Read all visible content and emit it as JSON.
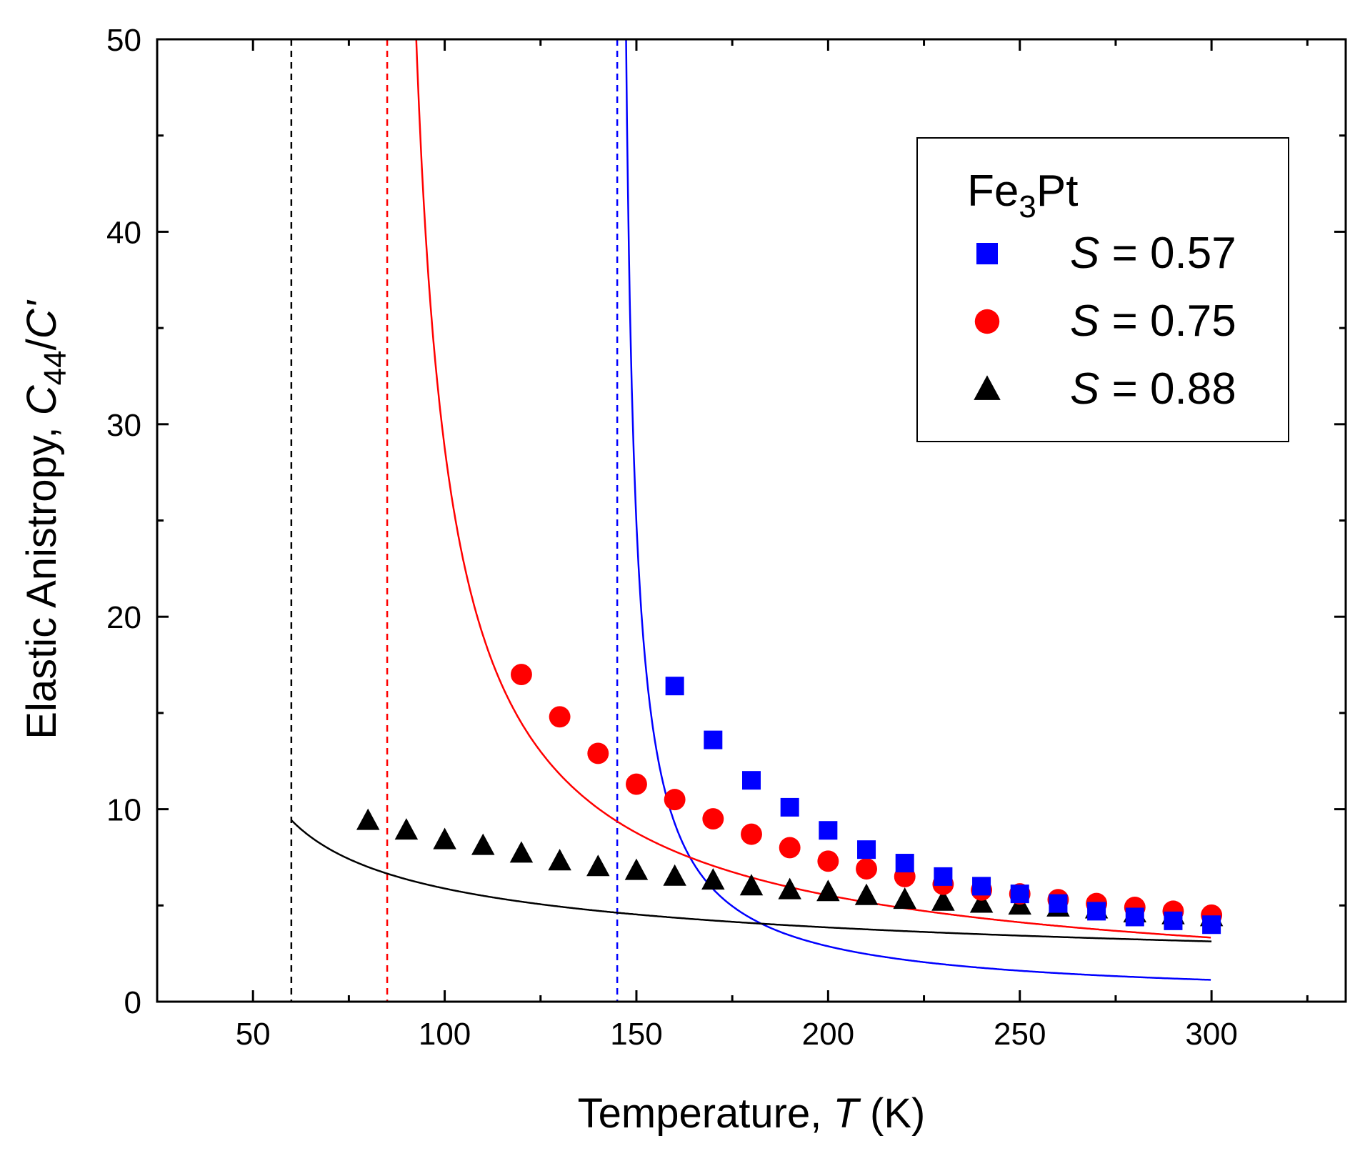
{
  "chart_data": {
    "type": "scatter",
    "title": "",
    "xlabel": {
      "prefix": "Temperature, ",
      "var": "T",
      "suffix": " (K)"
    },
    "ylabel": {
      "prefix": "Elastic Anistropy, ",
      "var": "C",
      "sub": "44",
      "slash": "/",
      "var2": "C'"
    },
    "xlim": [
      25,
      335
    ],
    "ylim": [
      0,
      50
    ],
    "xticks": [
      50,
      100,
      150,
      200,
      250,
      300
    ],
    "yticks": [
      0,
      10,
      20,
      30,
      40,
      50
    ],
    "legend": {
      "title_main": "Fe",
      "title_sub": "3",
      "title_rest": "Pt",
      "position": "top-right"
    },
    "series": [
      {
        "name": "S = 0.57",
        "label_var": "S",
        "label_rest": " = 0.57",
        "marker": "square",
        "color": "#0000ff",
        "x": [
          160,
          170,
          180,
          190,
          200,
          210,
          220,
          230,
          240,
          250,
          260,
          270,
          280,
          290,
          300
        ],
        "y": [
          16.4,
          13.6,
          11.5,
          10.1,
          8.9,
          7.9,
          7.2,
          6.5,
          6.0,
          5.6,
          5.1,
          4.7,
          4.4,
          4.2,
          4.0
        ],
        "fit": {
          "A": 106,
          "Tc": 145,
          "n": 0.9
        },
        "transition_T": 145
      },
      {
        "name": "S = 0.75",
        "label_var": "S",
        "label_rest": " = 0.75",
        "marker": "circle",
        "color": "#ff0000",
        "x": [
          120,
          130,
          140,
          150,
          160,
          170,
          180,
          190,
          200,
          210,
          220,
          230,
          240,
          250,
          260,
          270,
          280,
          290,
          300
        ],
        "y": [
          17.0,
          14.8,
          12.9,
          11.3,
          10.5,
          9.5,
          8.7,
          8.0,
          7.3,
          6.9,
          6.5,
          6.1,
          5.8,
          5.6,
          5.3,
          5.1,
          4.9,
          4.7,
          4.5
        ],
        "fit": {
          "A": 258,
          "Tc": 85,
          "n": 0.81
        },
        "transition_T": 85
      },
      {
        "name": "S = 0.88",
        "label_var": "S",
        "label_rest": " = 0.88",
        "marker": "triangle",
        "color": "#000000",
        "x": [
          80,
          90,
          100,
          110,
          120,
          130,
          140,
          150,
          160,
          170,
          180,
          190,
          200,
          210,
          220,
          230,
          240,
          250,
          260,
          270,
          280,
          290,
          300
        ],
        "y": [
          9.4,
          8.9,
          8.4,
          8.1,
          7.7,
          7.3,
          7.0,
          6.8,
          6.5,
          6.3,
          6.0,
          5.8,
          5.7,
          5.5,
          5.3,
          5.2,
          5.1,
          5.0,
          4.9,
          4.8,
          4.6,
          4.5,
          4.4
        ],
        "fit": {
          "A": 34.2,
          "Tc": 40,
          "n": 0.43
        },
        "transition_T": 60
      }
    ]
  }
}
